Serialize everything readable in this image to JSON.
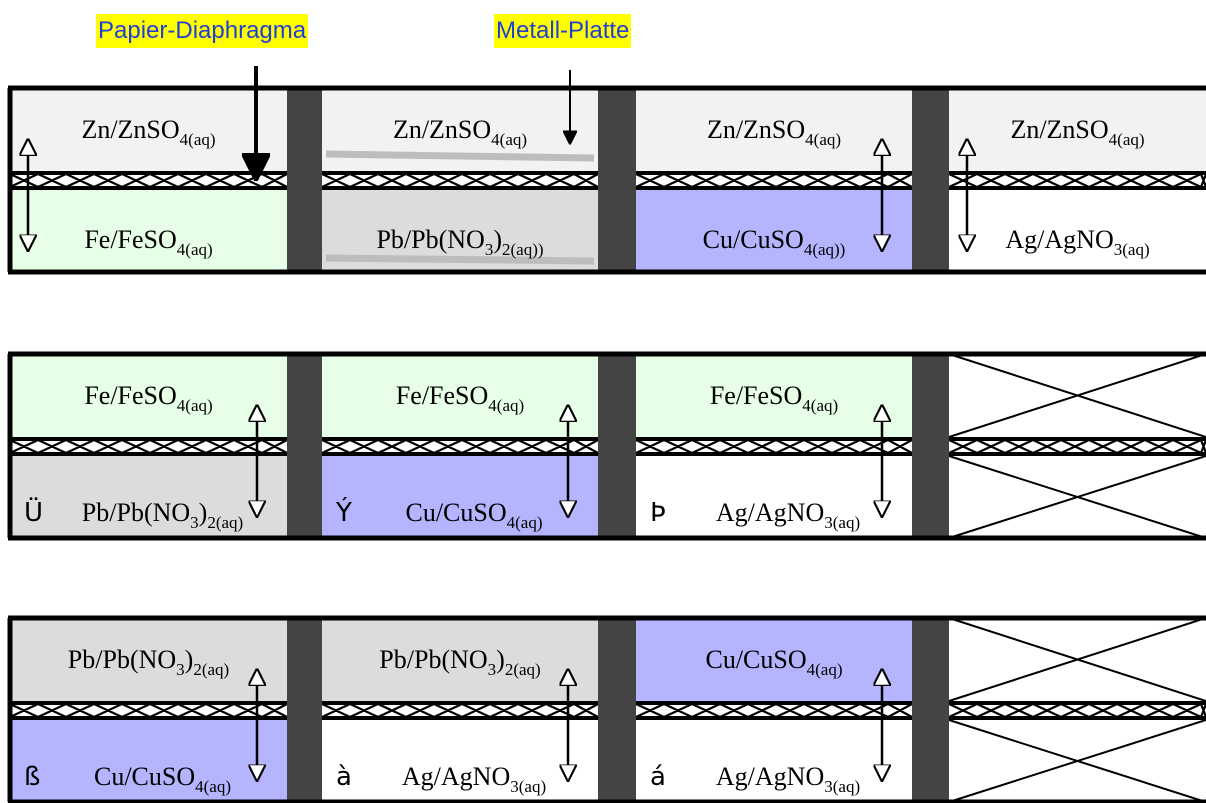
{
  "callouts": {
    "diaphragm": "Papier-Diaphragma",
    "plate": "Metall-Platte"
  },
  "colors": {
    "Zn": "#f2f2f2",
    "Fe": "#e6ffe6",
    "Pb": "#dcdcdc",
    "Cu": "#b4b4ff",
    "Ag": "#ffffff",
    "frame": "#000000",
    "separator": "#444444",
    "callout_bg": "#ffff00",
    "callout_text": "#1f3fd6"
  },
  "rows": [
    {
      "cells": [
        {
          "top": {
            "el": "Zn",
            "base": "Zn/ZnSO",
            "sub": "4(aq)"
          },
          "bottom": {
            "el": "Fe",
            "base": "Fe/FeSO",
            "sub": "4(aq)"
          },
          "arrow": "left",
          "callout_arrow": true
        },
        {
          "top": {
            "el": "Zn",
            "base": "Zn/ZnSO",
            "sub": "4(aq)"
          },
          "bottom": {
            "el": "Pb",
            "base": "Pb/Pb(NO",
            "mid": "3",
            "after": ")",
            "sub": "2(aq))"
          },
          "plates": true,
          "plate_arrow": true
        },
        {
          "top": {
            "el": "Zn",
            "base": "Zn/ZnSO",
            "sub": "4(aq)"
          },
          "bottom": {
            "el": "Cu",
            "base": "Cu/CuSO",
            "sub": "4(aq))"
          },
          "arrow": "right"
        },
        {
          "top": {
            "el": "Zn",
            "base": "Zn/ZnSO",
            "sub": "4(aq)"
          },
          "bottom": {
            "el": "Ag",
            "base": "Ag/AgNO",
            "sub": "3(aq)"
          },
          "arrow": "left"
        }
      ]
    },
    {
      "cells": [
        {
          "top": {
            "el": "Fe",
            "base": "Fe/FeSO",
            "sub": "4(aq)"
          },
          "bottom": {
            "el": "Pb",
            "symbol": "Ü",
            "base": "Pb/Pb(NO",
            "mid": "3",
            "after": ")",
            "sub": "2(aq)"
          },
          "arrow": "right"
        },
        {
          "top": {
            "el": "Fe",
            "base": "Fe/FeSO",
            "sub": "4(aq)"
          },
          "bottom": {
            "el": "Cu",
            "symbol": "Ý",
            "base": "Cu/CuSO",
            "sub": "4(aq)"
          },
          "arrow": "right"
        },
        {
          "top": {
            "el": "Fe",
            "base": "Fe/FeSO",
            "sub": "4(aq)"
          },
          "bottom": {
            "el": "Ag",
            "symbol": "Þ",
            "base": "Ag/AgNO",
            "sub": "3(aq)"
          },
          "arrow": "right"
        },
        {
          "crossed": true
        }
      ]
    },
    {
      "cells": [
        {
          "top": {
            "el": "Pb",
            "base": "Pb/Pb(NO",
            "mid": "3",
            "after": ")",
            "sub": "2(aq)"
          },
          "bottom": {
            "el": "Cu",
            "symbol": "ß",
            "base": "Cu/CuSO",
            "sub": "4(aq)"
          },
          "arrow": "right"
        },
        {
          "top": {
            "el": "Pb",
            "base": "Pb/Pb(NO",
            "mid": "3",
            "after": ")",
            "sub": "2(aq)"
          },
          "bottom": {
            "el": "Ag",
            "symbol": "à",
            "base": "Ag/AgNO",
            "sub": "3(aq)"
          },
          "arrow": "right"
        },
        {
          "top": {
            "el": "Cu",
            "base": "Cu/CuSO",
            "sub": "4(aq)"
          },
          "bottom": {
            "el": "Ag",
            "symbol": "á",
            "base": "Ag/AgNO",
            "sub": "3(aq)"
          },
          "arrow": "right"
        },
        {
          "crossed": true
        }
      ]
    }
  ]
}
